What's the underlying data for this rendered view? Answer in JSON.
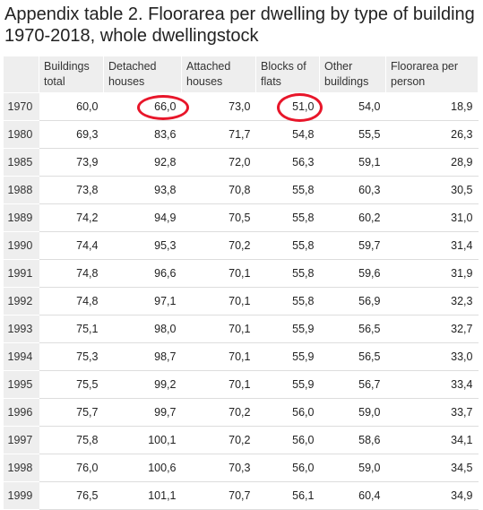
{
  "title": "Appendix table 2. Floorarea per dwelling by type of building 1970-2018, whole dwellingstock",
  "columns": [
    "",
    "Buildings total",
    "Detached houses",
    "Attached houses",
    "Blocks of flats",
    "Other buildings",
    "Floorarea per person"
  ],
  "rows": [
    [
      "1970",
      "60,0",
      "66,0",
      "73,0",
      "51,0",
      "54,0",
      "18,9"
    ],
    [
      "1980",
      "69,3",
      "83,6",
      "71,7",
      "54,8",
      "55,5",
      "26,3"
    ],
    [
      "1985",
      "73,9",
      "92,8",
      "72,0",
      "56,3",
      "59,1",
      "28,9"
    ],
    [
      "1988",
      "73,8",
      "93,8",
      "70,8",
      "55,8",
      "60,3",
      "30,5"
    ],
    [
      "1989",
      "74,2",
      "94,9",
      "70,5",
      "55,8",
      "60,2",
      "31,0"
    ],
    [
      "1990",
      "74,4",
      "95,3",
      "70,2",
      "55,8",
      "59,7",
      "31,4"
    ],
    [
      "1991",
      "74,8",
      "96,6",
      "70,1",
      "55,8",
      "59,6",
      "31,9"
    ],
    [
      "1992",
      "74,8",
      "97,1",
      "70,1",
      "55,8",
      "56,9",
      "32,3"
    ],
    [
      "1993",
      "75,1",
      "98,0",
      "70,1",
      "55,9",
      "56,5",
      "32,7"
    ],
    [
      "1994",
      "75,3",
      "98,7",
      "70,1",
      "55,9",
      "56,5",
      "33,0"
    ],
    [
      "1995",
      "75,5",
      "99,2",
      "70,1",
      "55,9",
      "56,7",
      "33,4"
    ],
    [
      "1996",
      "75,7",
      "99,7",
      "70,2",
      "56,0",
      "59,0",
      "33,7"
    ],
    [
      "1997",
      "75,8",
      "100,1",
      "70,2",
      "56,0",
      "58,6",
      "34,1"
    ],
    [
      "1998",
      "76,0",
      "100,6",
      "70,3",
      "56,0",
      "59,0",
      "34,5"
    ],
    [
      "1999",
      "76,5",
      "101,1",
      "70,7",
      "56,1",
      "60,4",
      "34,9"
    ]
  ],
  "highlight_color": "#e8162a"
}
